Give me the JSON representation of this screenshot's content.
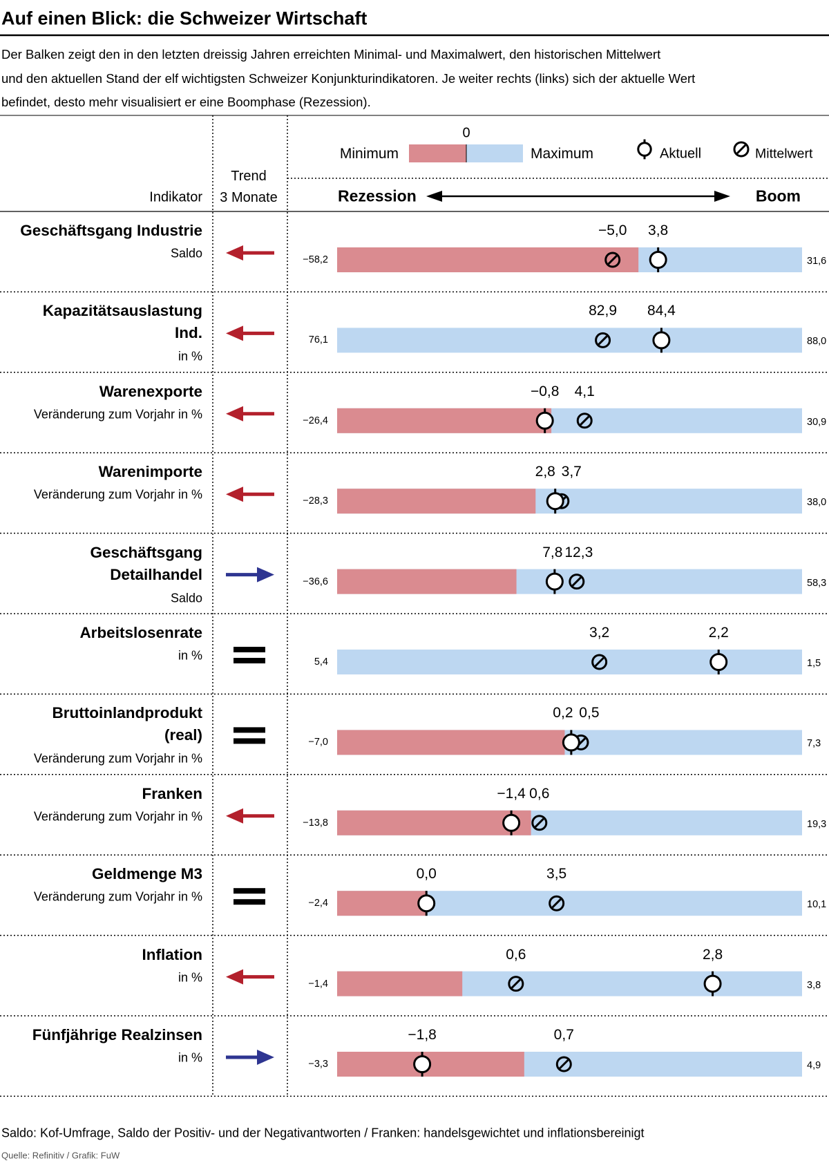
{
  "chart_data": {
    "type": "range",
    "title": "Auf einen Blick: die Schweizer Wirtschaft",
    "subtitle": "Der Balken zeigt den in den letzten dreissig Jahren erreichten Minimal- und Maximalwert, den historischen Mittelwert\nund den aktuellen Stand der elf wichtigsten Schweizer Konjunkturindikatoren. Je weiter rechts (links) sich der aktuelle Wert\nbefindet, desto mehr visualisiert er eine Boomphase (Rezession).",
    "header": {
      "indicator": "Indikator",
      "trend": "Trend\n3 Monate",
      "left": "Rezession",
      "right": "Boom"
    },
    "legend": {
      "min": "Minimum",
      "max": "Maximum",
      "zero": 0,
      "current": "Aktuell",
      "mean": "Mittelwert"
    },
    "colors": {
      "recession": "#da8b90",
      "boom": "#bdd7f1",
      "down": "#b3202c",
      "up": "#2e3591",
      "flat": "#000000"
    },
    "rows": [
      {
        "name": "Geschäftsgang Industrie",
        "unit": "Saldo",
        "trend": "down",
        "left": -58.2,
        "right": 31.6,
        "current": 3.8,
        "mean": -5.0,
        "value_labels": {
          "left": "−58,2",
          "right": "31,6",
          "current": "3,8",
          "mean": "−5,0"
        }
      },
      {
        "name": "Kapazitätsauslastung\nInd.",
        "unit": "in %",
        "trend": "down",
        "left": 76.1,
        "right": 88.0,
        "current": 84.4,
        "mean": 82.9,
        "value_labels": {
          "left": "76,1",
          "right": "88,0",
          "current": "84,4",
          "mean": "82,9"
        }
      },
      {
        "name": "Warenexporte",
        "unit": "Veränderung zum Vorjahr in %",
        "trend": "down",
        "left": -26.4,
        "right": 30.9,
        "current": -0.8,
        "mean": 4.1,
        "value_labels": {
          "left": "−26,4",
          "right": "30,9",
          "current": "−0,8",
          "mean": "4,1"
        }
      },
      {
        "name": "Warenimporte",
        "unit": "Veränderung zum Vorjahr in %",
        "trend": "down",
        "left": -28.3,
        "right": 38.0,
        "current": 2.8,
        "mean": 3.7,
        "value_labels": {
          "left": "−28,3",
          "right": "38,0",
          "current": "2,8",
          "mean": "3,7"
        }
      },
      {
        "name": "Geschäftsgang\nDetailhandel",
        "unit": "Saldo",
        "trend": "up",
        "left": -36.6,
        "right": 58.3,
        "current": 7.8,
        "mean": 12.3,
        "value_labels": {
          "left": "−36,6",
          "right": "58,3",
          "current": "7,8",
          "mean": "12,3"
        }
      },
      {
        "name": "Arbeitslosenrate",
        "unit": "in %",
        "trend": "flat",
        "left": 5.4,
        "right": 1.5,
        "current": 2.2,
        "mean": 3.2,
        "value_labels": {
          "left": "5,4",
          "right": "1,5",
          "current": "2,2",
          "mean": "3,2"
        }
      },
      {
        "name": "Bruttoinlandprodukt\n(real)",
        "unit": "Veränderung zum Vorjahr in %",
        "trend": "flat",
        "left": -7.0,
        "right": 7.3,
        "current": 0.2,
        "mean": 0.5,
        "value_labels": {
          "left": "−7,0",
          "right": "7,3",
          "current": "0,2",
          "mean": "0,5"
        }
      },
      {
        "name": "Franken",
        "unit": "Veränderung zum Vorjahr in %",
        "trend": "down",
        "left": -13.8,
        "right": 19.3,
        "current": -1.4,
        "mean": 0.6,
        "value_labels": {
          "left": "−13,8",
          "right": "19,3",
          "current": "−1,4",
          "mean": "0,6"
        }
      },
      {
        "name": "Geldmenge M3",
        "unit": "Veränderung zum Vorjahr in %",
        "trend": "flat",
        "left": -2.4,
        "right": 10.1,
        "current": 0.0,
        "mean": 3.5,
        "value_labels": {
          "left": "−2,4",
          "right": "10,1",
          "current": "0,0",
          "mean": "3,5"
        }
      },
      {
        "name": "Inflation",
        "unit": "in %",
        "trend": "down",
        "left": -1.4,
        "right": 3.8,
        "current": 2.8,
        "mean": 0.6,
        "value_labels": {
          "left": "−1,4",
          "right": "3,8",
          "current": "2,8",
          "mean": "0,6"
        }
      },
      {
        "name": "Fünfjährige Realzinsen",
        "unit": "in %",
        "trend": "up",
        "left": -3.3,
        "right": 4.9,
        "current": -1.8,
        "mean": 0.7,
        "value_labels": {
          "left": "−3,3",
          "right": "4,9",
          "current": "−1,8",
          "mean": "0,7"
        }
      }
    ],
    "footnote": "Saldo: Kof-Umfrage, Saldo der Positiv- und der Negativantworten / Franken: handelsgewichtet und inflationsbereinigt",
    "source": "Quelle: Refinitiv / Grafik: FuW"
  }
}
